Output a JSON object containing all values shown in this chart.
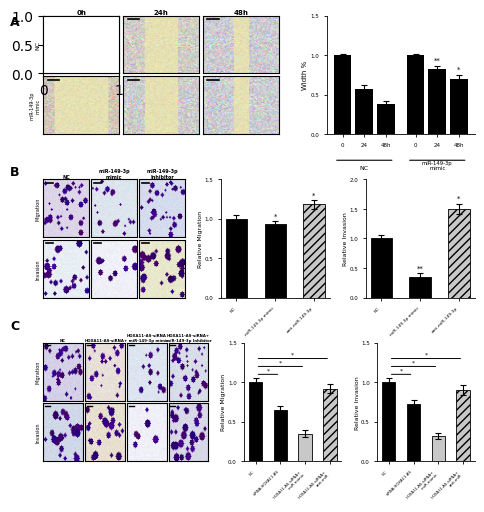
{
  "panel_A_bar": {
    "values": [
      [
        1.0,
        0.57,
        0.38
      ],
      [
        1.0,
        0.82,
        0.7
      ]
    ],
    "errors": [
      [
        0.02,
        0.05,
        0.04
      ],
      [
        0.02,
        0.04,
        0.05
      ]
    ],
    "ylabel": "Width %",
    "ylim": [
      0.0,
      1.5
    ],
    "yticks": [
      0.0,
      0.5,
      1.0,
      1.5
    ],
    "xtick_labels": [
      "0",
      "24",
      "48h",
      "0",
      "24",
      "48h"
    ],
    "group_labels": [
      "NC",
      "miR-149-3p\nmimic"
    ],
    "sig_24_mimic": "**",
    "sig_48_mimic": "*"
  },
  "panel_B_migration": {
    "values": [
      1.0,
      0.93,
      1.18
    ],
    "errors": [
      0.05,
      0.04,
      0.06
    ],
    "ylabel": "Relative Migration",
    "ylim": [
      0.0,
      1.5
    ],
    "yticks": [
      0.0,
      0.5,
      1.0,
      1.5
    ],
    "sig": [
      "",
      "*",
      "*"
    ]
  },
  "panel_B_invasion": {
    "values": [
      1.0,
      0.35,
      1.5
    ],
    "errors": [
      0.05,
      0.06,
      0.08
    ],
    "ylabel": "Relative Invasion",
    "ylim": [
      0.0,
      2.0
    ],
    "yticks": [
      0.0,
      0.5,
      1.0,
      1.5,
      2.0
    ],
    "sig": [
      "",
      "**",
      "*"
    ]
  },
  "panel_C_migration": {
    "values": [
      1.0,
      0.65,
      0.35,
      0.92
    ],
    "errors": [
      0.05,
      0.05,
      0.04,
      0.06
    ],
    "ylabel": "Relative Migration",
    "ylim": [
      0.0,
      1.5
    ],
    "yticks": [
      0.0,
      0.5,
      1.0,
      1.5
    ]
  },
  "panel_C_invasion": {
    "values": [
      1.0,
      0.72,
      0.32,
      0.9
    ],
    "errors": [
      0.05,
      0.05,
      0.04,
      0.06
    ],
    "ylabel": "Relative Invasion",
    "ylim": [
      0.0,
      1.5
    ],
    "yticks": [
      0.0,
      0.5,
      1.0,
      1.5
    ]
  },
  "colors": {
    "black": "#000000",
    "white": "#FFFFFF",
    "light_gray": "#C8C8C8"
  },
  "panel_labels": [
    "A",
    "B",
    "C"
  ],
  "time_labels": [
    "0h",
    "24h",
    "48h"
  ],
  "B_col_labels": [
    "NC",
    "miR-149-3p\nmimic",
    "miR-149-3p\nInhibitor"
  ],
  "B_row_labels": [
    "Migration",
    "Invasion"
  ],
  "C_col_labels": [
    "NC",
    "HOXA11-AS-siRNA",
    "HOXA11-AS-siRNA\n+ miR-149-3p mimic",
    "HOXA11-AS-siRNA+\nmiR-149-3p Inhibitor"
  ],
  "C_row_labels": [
    "Migration",
    "Invasion"
  ],
  "B_xticklabels": [
    "NC",
    "miR-149-3p mimic",
    "anti-miR-149-3p"
  ],
  "C_xticklabels": [
    "NC",
    "siRNA-HOXA11-AS",
    "HOXA11-AS-siRNA+\nmiR mimic",
    "HOXA11-AS-siRNA+\nanti-miR"
  ]
}
